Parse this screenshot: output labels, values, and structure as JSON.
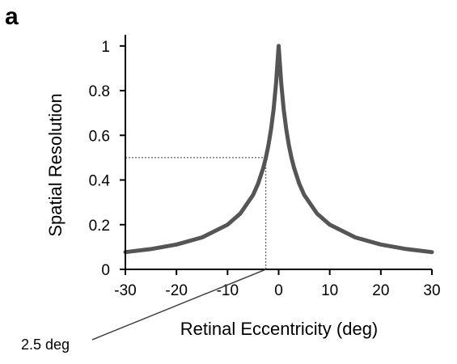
{
  "panel_label": "a",
  "chart_data": {
    "type": "line",
    "title": "",
    "xlabel": "Retinal Eccentricity (deg)",
    "ylabel": "Spatial Resolution",
    "xlim": [
      -30,
      30
    ],
    "ylim": [
      0,
      1.05
    ],
    "xticks": [
      -30,
      -20,
      -10,
      0,
      10,
      20,
      30
    ],
    "yticks": [
      0,
      0.2,
      0.4,
      0.6,
      0.8,
      1
    ],
    "grid": false,
    "legend": "none",
    "series": [
      {
        "color": "#555555",
        "x": [
          -30,
          -25,
          -20,
          -15,
          -10,
          -7.5,
          -5,
          -4,
          -3,
          -2.5,
          -2,
          -1.5,
          -1,
          -0.5,
          0,
          0.5,
          1,
          1.5,
          2,
          2.5,
          3,
          4,
          5,
          7.5,
          10,
          15,
          20,
          25,
          30
        ],
        "y": [
          0.077,
          0.091,
          0.111,
          0.143,
          0.2,
          0.25,
          0.333,
          0.385,
          0.455,
          0.5,
          0.556,
          0.625,
          0.714,
          0.833,
          1.0,
          0.833,
          0.714,
          0.625,
          0.556,
          0.5,
          0.455,
          0.385,
          0.333,
          0.25,
          0.2,
          0.143,
          0.111,
          0.091,
          0.077
        ]
      }
    ],
    "reference": {
      "x": -2.5,
      "y": 0.5
    },
    "annotations": [
      {
        "text": "2.5 deg",
        "points_to": {
          "x": -2.5,
          "y": 0
        }
      }
    ]
  }
}
